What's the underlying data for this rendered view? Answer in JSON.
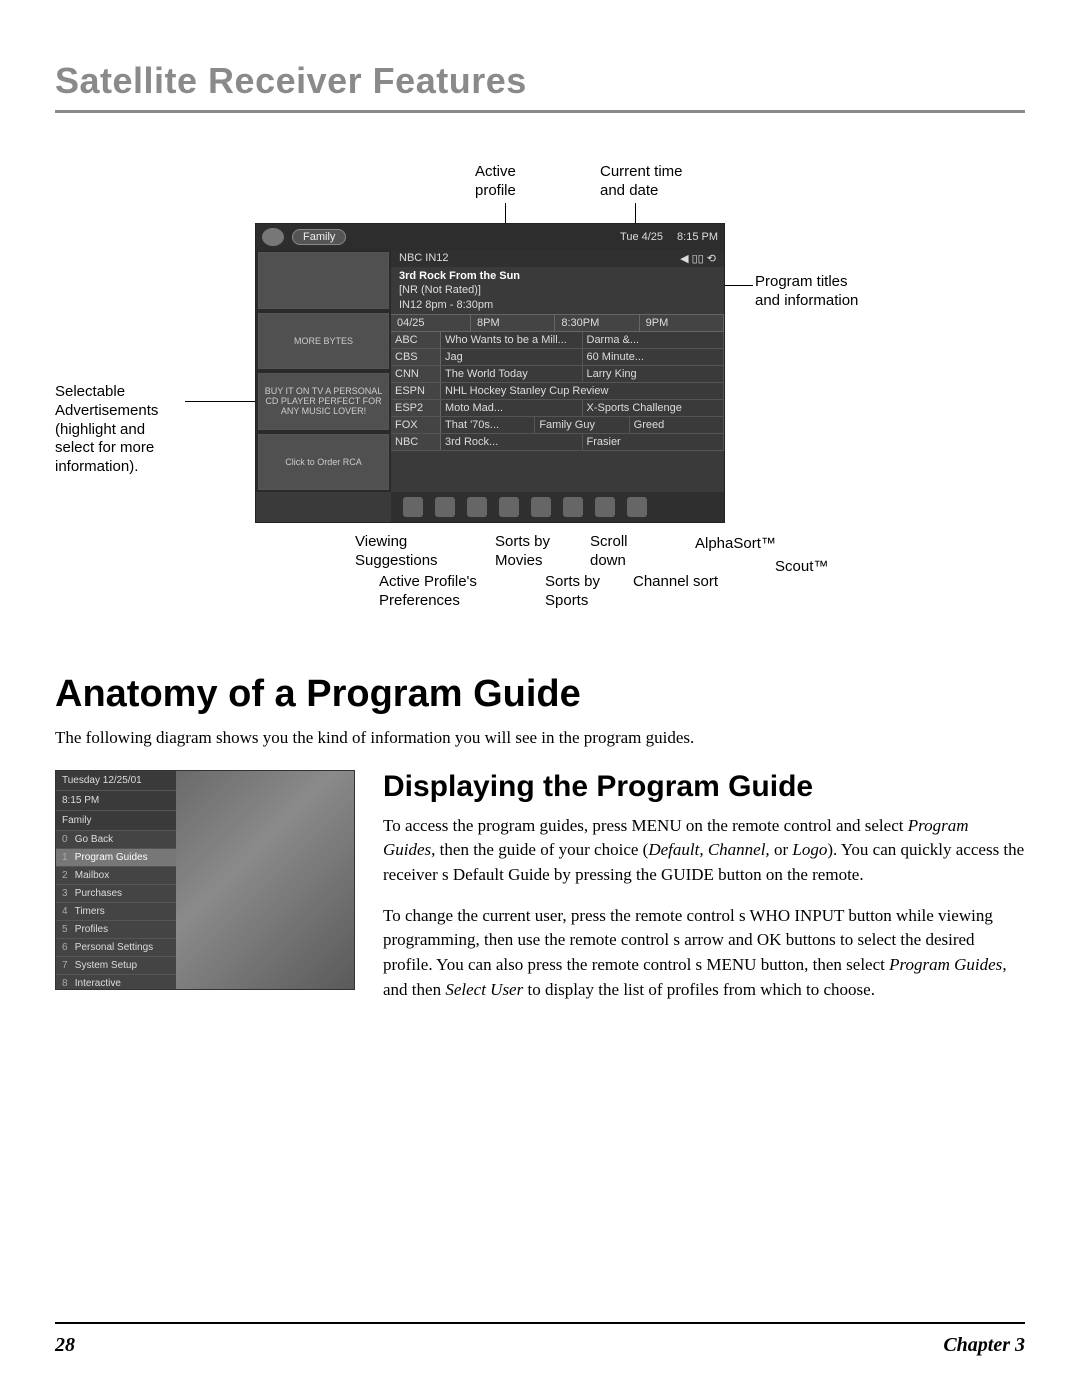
{
  "page": {
    "header": "Satellite Receiver Features",
    "page_number": "28",
    "chapter": "Chapter 3"
  },
  "diagram": {
    "callouts": {
      "active_profile": "Active\nprofile",
      "current_time": "Current time\nand date",
      "program_titles": "Program titles\nand information",
      "ads": "Selectable\nAdvertisements\n(highlight and\nselect for more\ninformation).",
      "viewing": "Viewing\nSuggestions",
      "active_prefs": "Active Profile's\nPreferences",
      "sorts_movies": "Sorts by\nMovies",
      "sorts_sports": "Sorts by\nSports",
      "scroll_down": "Scroll\ndown",
      "channel_sort": "Channel sort",
      "alphasort": "AlphaSort™",
      "scout": "Scout™"
    },
    "guide": {
      "profile_pill": "Family",
      "date": "Tue 4/25",
      "time": "8:15 PM",
      "network_line": "NBC  IN12",
      "show_title": "3rd Rock From the Sun",
      "rating": "[NR (Not Rated)]",
      "schedule": "IN12 8pm - 8:30pm",
      "time_cols": [
        "04/25",
        "8PM",
        "8:30PM",
        "9PM"
      ],
      "rows": [
        {
          "ch": "ABC",
          "cells": [
            "Who Wants to be a Mill...",
            "Darma &..."
          ]
        },
        {
          "ch": "CBS",
          "cells": [
            "Jag",
            "60 Minute..."
          ]
        },
        {
          "ch": "CNN",
          "cells": [
            "The World Today",
            "Larry King"
          ]
        },
        {
          "ch": "ESPN",
          "cells": [
            "NHL Hockey Stanley Cup Review"
          ]
        },
        {
          "ch": "ESP2",
          "cells": [
            "Moto Mad...",
            "X-Sports Challenge"
          ]
        },
        {
          "ch": "FOX",
          "cells": [
            "That '70s...",
            "Family Guy",
            "Greed"
          ]
        },
        {
          "ch": "NBC",
          "cells": [
            "3rd Rock...",
            "Frasier"
          ]
        }
      ],
      "ads": [
        "",
        "MORE BYTES",
        "BUY IT ON TV  A PERSONAL CD PLAYER PERFECT FOR ANY MUSIC LOVER!",
        "Click to Order RCA"
      ]
    }
  },
  "section1": {
    "title": "Anatomy of a Program Guide",
    "intro": "The following diagram shows you the kind of information you will see in the program guides."
  },
  "section2": {
    "title": "Displaying the Program Guide",
    "p1_a": "To access the program guides, press MENU on the remote control and select ",
    "p1_i1": "Program Guides",
    "p1_b": ", then the guide of your choice (",
    "p1_i2": "Default, Channel,",
    "p1_c": " or ",
    "p1_i3": "Logo",
    "p1_d": "). You can quickly access the receiver s Default Guide by pressing the GUIDE button on the remote.",
    "p2_a": "To change the current user, press the remote control s WHO  INPUT button while viewing programming, then use the remote control s arrow and OK buttons to select the desired profile. You can also press the remote control s MENU button, then select ",
    "p2_i1": "Program Guides",
    "p2_b": ", and then ",
    "p2_i2": "Select User",
    "p2_c": " to display the list of profiles from which to choose."
  },
  "menu": {
    "date": "Tuesday 12/25/01",
    "time": "8:15 PM",
    "profile": "Family",
    "items": [
      {
        "n": "0",
        "label": "Go Back",
        "sel": false
      },
      {
        "n": "1",
        "label": "Program Guides",
        "sel": true
      },
      {
        "n": "2",
        "label": "Mailbox",
        "sel": false
      },
      {
        "n": "3",
        "label": "Purchases",
        "sel": false
      },
      {
        "n": "4",
        "label": "Timers",
        "sel": false
      },
      {
        "n": "5",
        "label": "Profiles",
        "sel": false
      },
      {
        "n": "6",
        "label": "Personal Settings",
        "sel": false
      },
      {
        "n": "7",
        "label": "System Setup",
        "sel": false
      },
      {
        "n": "8",
        "label": "Interactive",
        "sel": false
      }
    ]
  }
}
